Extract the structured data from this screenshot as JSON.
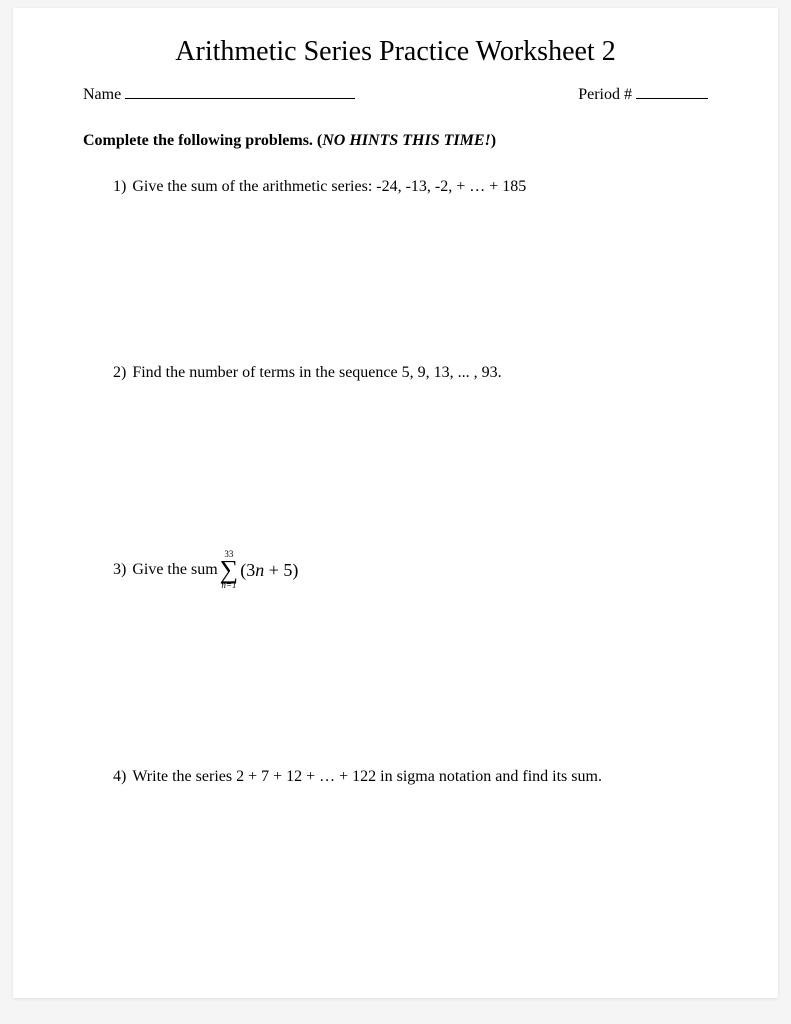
{
  "title": "Arithmetic Series Practice Worksheet 2",
  "header": {
    "name_label": "Name",
    "period_label": "Period #"
  },
  "instructions": {
    "prefix": "Complete the following problems. (",
    "emphasis": "NO HINTS THIS TIME!",
    "suffix": ")"
  },
  "problems": {
    "p1": {
      "num": "1)",
      "text": "Give the sum of the arithmetic series:  -24, -13, -2, + … + 185"
    },
    "p2": {
      "num": "2)",
      "text": "Find the number of terms in the sequence 5, 9, 13, ... , 93."
    },
    "p3": {
      "num": "3)",
      "text_prefix": "Give the sum ",
      "sigma_upper": "33",
      "sigma_lower": "n=1",
      "expr_open": "(3",
      "expr_var": "n",
      "expr_mid": " + 5)"
    },
    "p4": {
      "num": "4)",
      "text": "Write the series 2 + 7 + 12 + … + 122 in sigma notation and find its sum."
    }
  },
  "style": {
    "background_color": "#ffffff",
    "text_color": "#000000",
    "font_family": "Times New Roman",
    "title_fontsize": 28,
    "body_fontsize": 16,
    "sigma_fontsize": 26,
    "sigma_bounds_fontsize": 9
  }
}
